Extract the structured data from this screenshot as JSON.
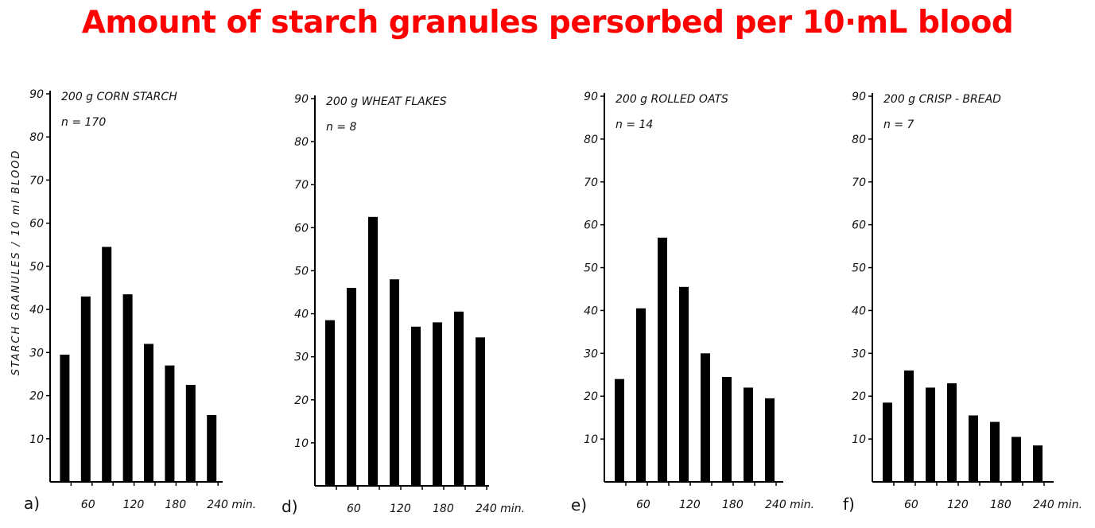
{
  "header": {
    "title": "Amount of starch granules persorbed per 10·mL blood"
  },
  "chart_data": [
    {
      "type": "bar",
      "panel_label": "a)",
      "title": "200 g  CORN STARCH",
      "n_label": "n = 170",
      "ylabel": "STARCH  GRANULES / 10 ml  BLOOD",
      "ylim": [
        0,
        90
      ],
      "yticks": [
        10,
        20,
        30,
        40,
        50,
        60,
        70,
        80,
        90
      ],
      "x": [
        30,
        60,
        90,
        120,
        150,
        180,
        210,
        240
      ],
      "xticks": [
        "60",
        "120",
        "180",
        "240 min."
      ],
      "values": [
        29.5,
        43,
        54.5,
        43.5,
        32,
        27,
        22.5,
        15.5
      ]
    },
    {
      "type": "bar",
      "panel_label": "d)",
      "title": "200 g  WHEAT FLAKES",
      "n_label": "n = 8",
      "ylabel": "",
      "ylim": [
        0,
        90
      ],
      "yticks": [
        10,
        20,
        30,
        40,
        50,
        60,
        70,
        80,
        90
      ],
      "x": [
        30,
        60,
        90,
        120,
        150,
        180,
        210,
        240
      ],
      "xticks": [
        "60",
        "120",
        "180",
        "240 min."
      ],
      "values": [
        38.5,
        46,
        62.5,
        48,
        37,
        38,
        40.5,
        34.5
      ]
    },
    {
      "type": "bar",
      "panel_label": "e)",
      "title": "200 g  ROLLED OATS",
      "n_label": "n = 14",
      "ylabel": "",
      "ylim": [
        0,
        90
      ],
      "yticks": [
        10,
        20,
        30,
        40,
        50,
        60,
        70,
        80,
        90
      ],
      "x": [
        30,
        60,
        90,
        120,
        150,
        180,
        210,
        240
      ],
      "xticks": [
        "60",
        "120",
        "180",
        "240 min."
      ],
      "values": [
        24,
        40.5,
        57,
        45.5,
        30,
        24.5,
        22,
        19.5
      ]
    },
    {
      "type": "bar",
      "panel_label": "f)",
      "title": "200 g  CRISP - BREAD",
      "n_label": "n = 7",
      "ylabel": "",
      "ylim": [
        0,
        90
      ],
      "yticks": [
        10,
        20,
        30,
        40,
        50,
        60,
        70,
        80,
        90
      ],
      "x": [
        30,
        60,
        90,
        120,
        150,
        180,
        210,
        240
      ],
      "xticks": [
        "60",
        "120",
        "180",
        "240 min."
      ],
      "values": [
        18.5,
        26,
        22,
        23,
        15.5,
        14,
        10.5,
        8.5
      ]
    }
  ],
  "colors": {
    "title": "#ff0000",
    "bars": "#000000",
    "axes": "#000000"
  }
}
